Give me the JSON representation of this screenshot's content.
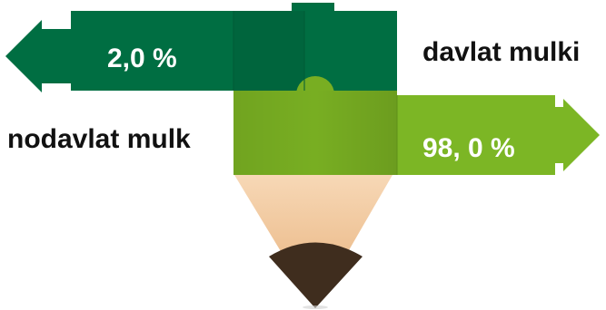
{
  "state_ownership": {
    "label": "davlat mulki",
    "value_text": "2,0 %",
    "share_percent": 2.0,
    "color": "#006E42"
  },
  "non_state_ownership": {
    "label": "nodavlat mulk",
    "value_text": "98, 0 %",
    "share_percent": 98.0,
    "color": "#78AE22"
  },
  "pencil": {
    "wood_color": "#F2C59A",
    "lead_color": "#3F2D1E"
  }
}
